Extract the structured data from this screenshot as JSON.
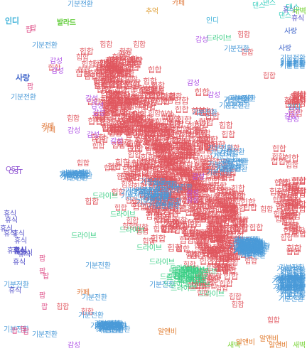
{
  "legend_palette": [
    {
      "label": "힙합",
      "color": "#e0575f",
      "count": 760
    },
    {
      "label": "기분전환",
      "color": "#4a9ad8",
      "count": 190
    },
    {
      "label": "드라이브",
      "color": "#3ccf86",
      "count": 44
    },
    {
      "label": "감성",
      "color": "#b055e6",
      "count": 38
    },
    {
      "label": "휴식",
      "color": "#5350c8",
      "count": 30
    },
    {
      "label": "인디",
      "color": "#3ab0d8",
      "count": 8
    },
    {
      "label": "사랑",
      "color": "#3d63c9",
      "count": 8
    },
    {
      "label": "팝",
      "color": "#e0558c",
      "count": 14
    },
    {
      "label": "카페",
      "color": "#e07a3c",
      "count": 6
    },
    {
      "label": "추억",
      "color": "#e0a23c",
      "count": 3
    },
    {
      "label": "발라드",
      "color": "#62cc3a",
      "count": 3
    },
    {
      "label": "알앤비",
      "color": "#e07a2c",
      "count": 4
    },
    {
      "label": "댄스",
      "color": "#3ccfbf",
      "count": 4
    },
    {
      "label": "새벽",
      "color": "#7bd43a",
      "count": 3
    },
    {
      "label": "OST",
      "color": "#8a4cd0",
      "count": 2
    }
  ],
  "labels_visible": [
    {
      "text": "댄스",
      "color": "#3ccfbf"
    },
    {
      "text": "기분전환",
      "color": "#4a9ad8"
    },
    {
      "text": "카페",
      "color": "#e07a3c"
    },
    {
      "text": "추억",
      "color": "#e0a23c"
    },
    {
      "text": "인디",
      "color": "#3ab0d8"
    },
    {
      "text": "발라드",
      "color": "#62cc3a"
    },
    {
      "text": "팝",
      "color": "#e0558c"
    },
    {
      "text": "사랑",
      "color": "#3d63c9"
    },
    {
      "text": "감성",
      "color": "#b055e6"
    },
    {
      "text": "힙합",
      "color": "#e0575f"
    },
    {
      "text": "휴식",
      "color": "#5350c8"
    },
    {
      "text": "드라이브",
      "color": "#3ccf86"
    },
    {
      "text": "OST",
      "color": "#8a4cd0"
    },
    {
      "text": "새벽",
      "color": "#7bd43a"
    },
    {
      "text": "알앤비",
      "color": "#e07a2c"
    }
  ]
}
